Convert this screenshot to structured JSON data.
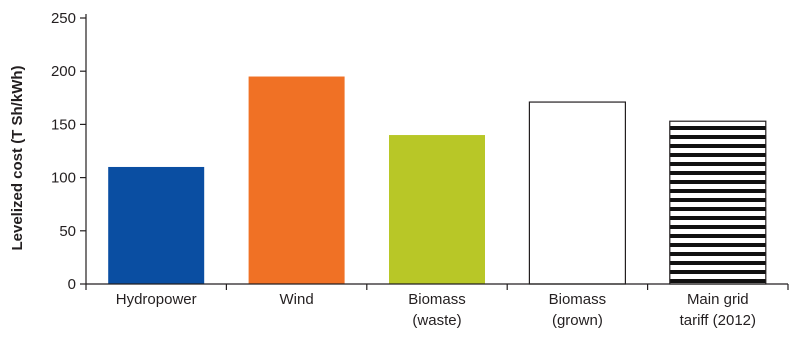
{
  "chart_data": {
    "type": "bar",
    "title": "",
    "xlabel": "",
    "ylabel": "Levelized cost (T Sh/kWh)",
    "ylim": [
      0,
      250
    ],
    "yticks": [
      0,
      50,
      100,
      150,
      200,
      250
    ],
    "grid": false,
    "legend": "none",
    "categories": [
      [
        "Hydropower"
      ],
      [
        "Wind"
      ],
      [
        "Biomass",
        "(waste)"
      ],
      [
        "Biomass",
        "(grown)"
      ],
      [
        "Main grid",
        "tariff (2012)"
      ]
    ],
    "values": [
      110,
      195,
      140,
      171,
      153
    ],
    "bar_styles": [
      {
        "fill": "#0a4ea2",
        "pattern": "solid"
      },
      {
        "fill": "#f07125",
        "pattern": "solid"
      },
      {
        "fill": "#b8c727",
        "pattern": "solid"
      },
      {
        "fill": "#ffffff",
        "pattern": "outline"
      },
      {
        "fill": "#ffffff",
        "pattern": "horizontal-stripes",
        "stripe_color": "#111111"
      }
    ],
    "axis_color": "#231f20"
  }
}
